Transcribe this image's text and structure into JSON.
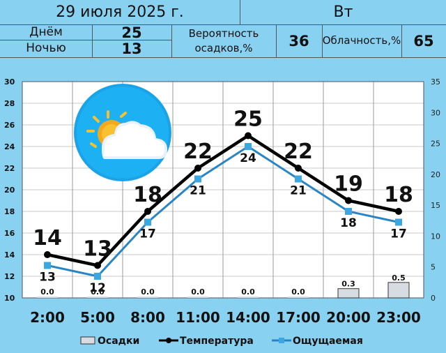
{
  "header": {
    "date": "29 июля 2025 г.",
    "weekday": "Вт",
    "day_label": "Днём",
    "day_value": "25",
    "night_label": "Ночью",
    "night_value": "13",
    "precip_label_1": "Вероятность",
    "precip_label_2": "осадков,%",
    "precip_value": "36",
    "cloud_label": "Облачность,%",
    "cloud_value": "65"
  },
  "icon": "partly-cloudy-sun-icon",
  "colors": {
    "background": "#89d1f0",
    "plot_bg": "#ffffff",
    "temperature": "#000000",
    "feels_like": "#2a85c4",
    "feels_marker": "#3aa7e0"
  },
  "chart_data": {
    "type": "line",
    "categories": [
      "2:00",
      "5:00",
      "8:00",
      "11:00",
      "14:00",
      "17:00",
      "20:00",
      "23:00"
    ],
    "series": [
      {
        "name": "Температура",
        "values": [
          14,
          13,
          18,
          22,
          25,
          22,
          19,
          18
        ]
      },
      {
        "name": "Ощущаемая",
        "values": [
          13,
          12,
          17,
          21,
          24,
          21,
          18,
          17
        ]
      },
      {
        "name": "Осадки",
        "type": "bar",
        "axis": "right",
        "values": [
          0.0,
          0.0,
          0.0,
          0.0,
          0.0,
          0.0,
          0.3,
          0.5
        ]
      }
    ],
    "precip_labels": [
      "0.0",
      "0.0",
      "0.0",
      "0.0",
      "0.0",
      "0.0",
      "0.3",
      "0.5"
    ],
    "y_left": {
      "min": 10,
      "max": 30,
      "ticks": [
        "10",
        "12",
        "14",
        "16",
        "18",
        "20",
        "22",
        "24",
        "26",
        "28",
        "30"
      ]
    },
    "y_right": {
      "min": 0,
      "max": 35,
      "ticks": [
        "0",
        "5",
        "10",
        "15",
        "20",
        "25",
        "30",
        "35"
      ]
    },
    "grid": true,
    "legend_position": "bottom",
    "legend": [
      "Осадки",
      "Температура",
      "Ощущаемая"
    ]
  }
}
